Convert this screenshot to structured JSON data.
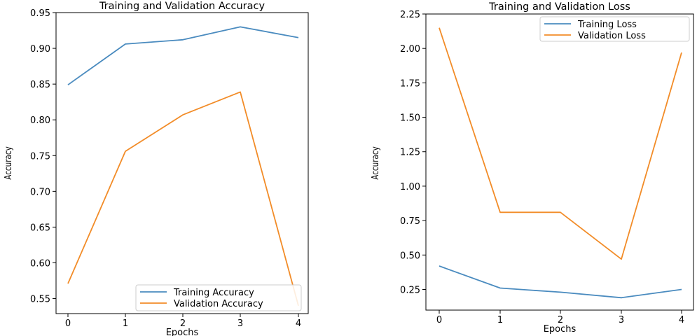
{
  "colors": {
    "training": "#4a8bbf",
    "validation": "#f28c28"
  },
  "chart_data": [
    {
      "type": "line",
      "title": "Training and Validation Accuracy",
      "xlabel": "Epochs",
      "ylabel": "Accuracy",
      "x": [
        0,
        1,
        2,
        3,
        4
      ],
      "xticks": [
        "0",
        "1",
        "2",
        "3",
        "4"
      ],
      "yticks": [
        "0.55",
        "0.60",
        "0.65",
        "0.70",
        "0.75",
        "0.80",
        "0.85",
        "0.90",
        "0.95"
      ],
      "ylim": [
        0.529,
        0.95
      ],
      "series": [
        {
          "name": "Training Accuracy",
          "values": [
            0.849,
            0.906,
            0.912,
            0.93,
            0.915
          ]
        },
        {
          "name": "Validation Accuracy",
          "values": [
            0.571,
            0.756,
            0.807,
            0.839,
            0.54
          ]
        }
      ],
      "legend": "lower right"
    },
    {
      "type": "line",
      "title": "Training and Validation Loss",
      "xlabel": "Epochs",
      "ylabel": "Accuracy",
      "x": [
        0,
        1,
        2,
        3,
        4
      ],
      "xticks": [
        "0",
        "1",
        "2",
        "3",
        "4"
      ],
      "yticks": [
        "0.25",
        "0.50",
        "0.75",
        "1.00",
        "1.25",
        "1.50",
        "1.75",
        "2.00",
        "2.25"
      ],
      "ylim": [
        0.1,
        2.25
      ],
      "series": [
        {
          "name": "Training Loss",
          "values": [
            0.42,
            0.26,
            0.23,
            0.19,
            0.25
          ]
        },
        {
          "name": "Validation Loss",
          "values": [
            2.15,
            0.81,
            0.81,
            0.47,
            1.97
          ]
        }
      ],
      "legend": "upper right"
    }
  ]
}
